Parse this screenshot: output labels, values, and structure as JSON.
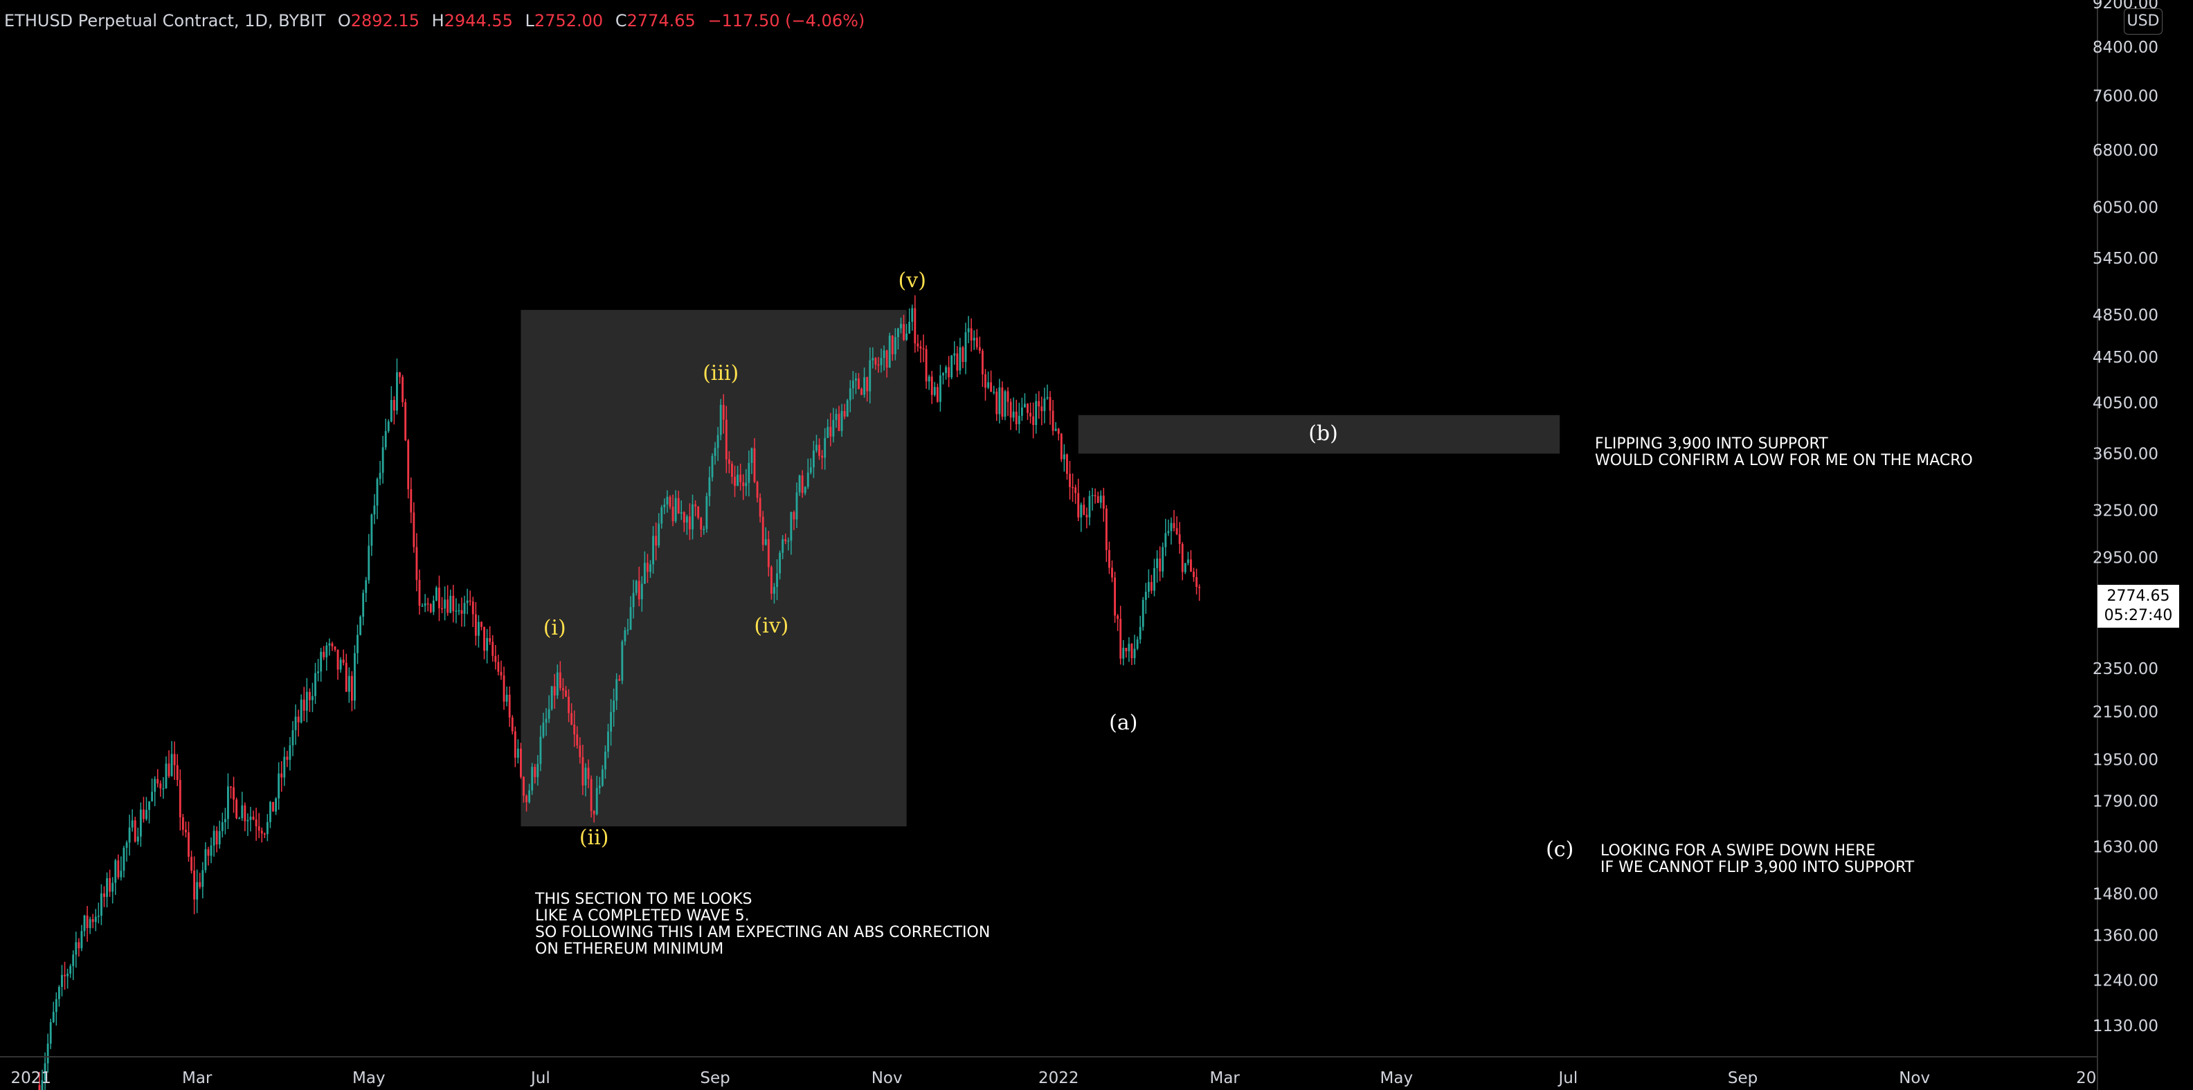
{
  "header": {
    "symbol": "ETHUSD Perpetual Contract, 1D, BYBIT",
    "open_label": "O",
    "open": "2892.15",
    "high_label": "H",
    "high": "2944.55",
    "low_label": "L",
    "low": "2752.00",
    "close_label": "C",
    "close": "2774.65",
    "change": "−117.50 (−4.06%)"
  },
  "axis": {
    "unit": "USD",
    "current_price": "2774.65",
    "countdown": "05:27:40"
  },
  "annotations": {
    "section_note": [
      "THIS SECTION TO ME LOOKS",
      "LIKE A COMPLETED WAVE 5.",
      "SO FOLLOWING THIS I AM EXPECTING AN ABS CORRECTION",
      "ON ETHEREUM MINIMUM"
    ],
    "flip_note": [
      "FLIPPING 3,900 INTO SUPPORT",
      "WOULD CONFIRM A LOW FOR ME ON THE MACRO"
    ],
    "swipe_note": [
      "LOOKING FOR A SWIPE DOWN HERE",
      "IF WE CANNOT FLIP 3,900 INTO SUPPORT"
    ]
  },
  "colors": {
    "up": "#26a69a",
    "down": "#f23645",
    "wave_label": "#ffe14d",
    "box": "#2a2a2a",
    "background": "#000000",
    "text": "#d1d4dc"
  },
  "chart_data": {
    "type": "candlestick",
    "y_scale": "log",
    "y_ticks": [
      1130,
      1240,
      1360,
      1480,
      1630,
      1790,
      1950,
      2150,
      2350,
      2950,
      3250,
      3650,
      4050,
      4450,
      4850,
      5450,
      6050,
      6800,
      7600,
      8400,
      9200
    ],
    "x_ticks": [
      {
        "date": "2021-01-01",
        "label": "2021"
      },
      {
        "date": "2021-03-01",
        "label": "Mar"
      },
      {
        "date": "2021-05-01",
        "label": "May"
      },
      {
        "date": "2021-07-01",
        "label": "Jul"
      },
      {
        "date": "2021-09-01",
        "label": "Sep"
      },
      {
        "date": "2021-11-01",
        "label": "Nov"
      },
      {
        "date": "2022-01-01",
        "label": "2022"
      },
      {
        "date": "2022-03-01",
        "label": "Mar"
      },
      {
        "date": "2022-05-01",
        "label": "May"
      },
      {
        "date": "2022-07-01",
        "label": "Jul"
      },
      {
        "date": "2022-09-01",
        "label": "Sep"
      },
      {
        "date": "2022-11-01",
        "label": "Nov"
      },
      {
        "date": "2023-01-01",
        "label": "20"
      }
    ],
    "x_range": [
      "2020-12-21",
      "2023-01-05"
    ],
    "y_range": [
      1060,
      9250
    ],
    "price_path": [
      {
        "date": "2021-01-04",
        "price": 1000
      },
      {
        "date": "2021-01-10",
        "price": 1180
      },
      {
        "date": "2021-01-18",
        "price": 1360
      },
      {
        "date": "2021-01-26",
        "price": 1450
      },
      {
        "date": "2021-02-06",
        "price": 1680
      },
      {
        "date": "2021-02-20",
        "price": 1950
      },
      {
        "date": "2021-02-28",
        "price": 1480
      },
      {
        "date": "2021-03-12",
        "price": 1800
      },
      {
        "date": "2021-03-26",
        "price": 1700
      },
      {
        "date": "2021-04-04",
        "price": 2050
      },
      {
        "date": "2021-04-16",
        "price": 2450
      },
      {
        "date": "2021-04-25",
        "price": 2250
      },
      {
        "date": "2021-05-03",
        "price": 3300
      },
      {
        "date": "2021-05-12",
        "price": 4350
      },
      {
        "date": "2021-05-19",
        "price": 2600
      },
      {
        "date": "2021-05-25",
        "price": 2750
      },
      {
        "date": "2021-06-05",
        "price": 2650
      },
      {
        "date": "2021-06-16",
        "price": 2350
      },
      {
        "date": "2021-06-26",
        "price": 1800
      },
      {
        "date": "2021-07-07",
        "price": 2300
      },
      {
        "date": "2021-07-20",
        "price": 1750
      },
      {
        "date": "2021-08-01",
        "price": 2600
      },
      {
        "date": "2021-08-14",
        "price": 3250
      },
      {
        "date": "2021-08-28",
        "price": 3200
      },
      {
        "date": "2021-09-03",
        "price": 3950
      },
      {
        "date": "2021-09-07",
        "price": 3400
      },
      {
        "date": "2021-09-14",
        "price": 3600
      },
      {
        "date": "2021-09-21",
        "price": 2800
      },
      {
        "date": "2021-10-01",
        "price": 3400
      },
      {
        "date": "2021-10-20",
        "price": 4150
      },
      {
        "date": "2021-10-28",
        "price": 4350
      },
      {
        "date": "2021-11-10",
        "price": 4800
      },
      {
        "date": "2021-11-18",
        "price": 4100
      },
      {
        "date": "2021-12-01",
        "price": 4650
      },
      {
        "date": "2021-12-08",
        "price": 4100
      },
      {
        "date": "2021-12-20",
        "price": 3950
      },
      {
        "date": "2021-12-28",
        "price": 4050
      },
      {
        "date": "2022-01-05",
        "price": 3500
      },
      {
        "date": "2022-01-08",
        "price": 3200
      },
      {
        "date": "2022-01-16",
        "price": 3350
      },
      {
        "date": "2022-01-23",
        "price": 2450
      },
      {
        "date": "2022-01-27",
        "price": 2400
      },
      {
        "date": "2022-02-02",
        "price": 2750
      },
      {
        "date": "2022-02-10",
        "price": 3150
      },
      {
        "date": "2022-02-15",
        "price": 2900
      },
      {
        "date": "2022-02-20",
        "price": 2774.65
      }
    ],
    "wave_labels": [
      {
        "label": "(i)",
        "date": "2021-07-06",
        "price": 2550,
        "style": "yellow"
      },
      {
        "label": "(ii)",
        "date": "2021-07-20",
        "price": 1660,
        "style": "yellow"
      },
      {
        "label": "(iii)",
        "date": "2021-09-03",
        "price": 4300,
        "style": "yellow"
      },
      {
        "label": "(iv)",
        "date": "2021-09-21",
        "price": 2560,
        "style": "yellow"
      },
      {
        "label": "(v)",
        "date": "2021-11-10",
        "price": 5200,
        "style": "yellow"
      },
      {
        "label": "(a)",
        "date": "2022-01-24",
        "price": 2100,
        "style": "white"
      },
      {
        "label": "(b)",
        "date": "2022-04-05",
        "price": 3800,
        "style": "white"
      },
      {
        "label": "(c)",
        "date": "2022-06-28",
        "price": 1620,
        "style": "white"
      }
    ],
    "boxes": [
      {
        "name": "impulse-wave-box",
        "x0": "2021-06-24",
        "x1": "2021-11-08",
        "y0": 1700,
        "y1": 4900
      },
      {
        "name": "flip-zone-box",
        "x0": "2022-01-08",
        "x1": "2022-06-28",
        "y0": 3650,
        "y1": 3950
      }
    ]
  }
}
